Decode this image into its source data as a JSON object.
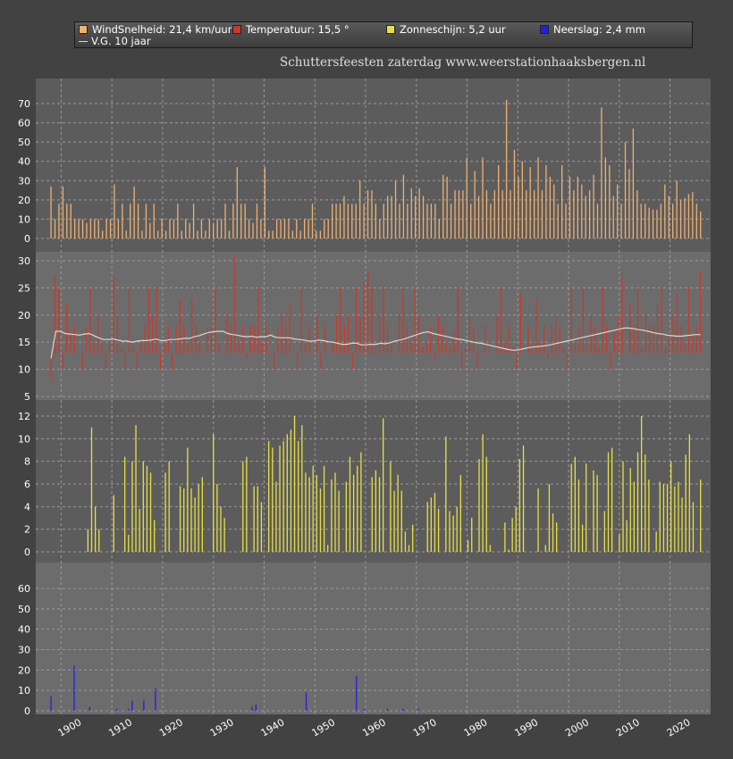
{
  "legend": {
    "wind": "WindSnelheid: 21,4 km/uur",
    "temp": "Temperatuur: 15,5 °",
    "sun": "Zonneschijn: 5,2 uur",
    "rain": "Neerslag: 2,4 mm",
    "avg": "V.G. 10 jaar"
  },
  "subtitle": "Schuttersfeesten zaterdag  www.weerstationhaaksbergen.nl",
  "colors": {
    "wind": "#f0b070",
    "temp": "#c83a2a",
    "sun": "#e8e040",
    "rain": "#2020e0",
    "avg": "#d8d8d8",
    "panel": "#5c5c5c",
    "panel_light": "#6c6c6c",
    "grid": "#9a9a9a",
    "text": "#ffffff"
  },
  "chart_data": {
    "type": "bar",
    "x_start": 1896,
    "x_end": 2024,
    "xlim": [
      1893,
      2026
    ],
    "x_ticks": [
      1900,
      1910,
      1920,
      1930,
      1940,
      1950,
      1960,
      1970,
      1980,
      1990,
      2000,
      2010,
      2020
    ],
    "panels": [
      {
        "name": "WindSnelheid",
        "ylim": [
          0,
          75
        ],
        "yticks": [
          0,
          10,
          20,
          30,
          40,
          50,
          60,
          70
        ],
        "baseline": 0,
        "values": [
          27,
          10,
          18,
          27,
          18,
          18,
          10,
          10,
          10,
          8,
          10,
          10,
          10,
          4,
          10,
          10,
          28,
          10,
          18,
          4,
          18,
          27,
          18,
          4,
          18,
          8,
          18,
          4,
          10,
          4,
          10,
          10,
          18,
          4,
          10,
          8,
          18,
          4,
          10,
          4,
          10,
          8,
          10,
          10,
          18,
          4,
          18,
          37,
          18,
          18,
          10,
          8,
          18,
          10,
          37,
          4,
          4,
          10,
          10,
          10,
          10,
          4,
          10,
          4,
          10,
          10,
          18,
          4,
          4,
          10,
          10,
          18,
          18,
          18,
          22,
          18,
          18,
          18,
          30,
          18,
          25,
          25,
          18,
          10,
          18,
          22,
          22,
          30,
          18,
          33,
          18,
          26,
          22,
          26,
          22,
          18,
          18,
          18,
          10,
          33,
          32,
          18,
          25,
          25,
          25,
          42,
          18,
          35,
          22,
          42,
          25,
          18,
          25,
          38,
          25,
          72,
          25,
          46,
          32,
          40,
          25,
          37,
          25,
          42,
          25,
          38,
          32,
          28,
          18,
          38,
          18,
          32,
          25,
          32,
          28,
          22,
          25,
          33,
          18,
          68,
          42,
          38,
          22,
          28,
          18,
          50,
          36,
          57,
          25,
          18,
          18,
          16,
          15,
          15,
          18,
          28,
          22,
          18,
          30,
          20,
          21,
          23,
          24,
          18,
          14
        ],
        "_note": "values per year from first year"
      },
      {
        "name": "Temperatuur",
        "ylim": [
          3,
          32
        ],
        "yticks": [
          5,
          10,
          15,
          20,
          25,
          30
        ],
        "baseline": 13,
        "values": [
          8,
          27,
          25,
          10,
          22,
          17,
          18,
          13,
          10,
          18,
          25,
          15,
          20,
          15,
          10,
          15,
          27,
          20,
          14,
          10,
          25,
          14,
          10,
          15,
          18,
          25,
          20,
          25,
          10,
          15,
          18,
          10,
          18,
          23,
          18,
          15,
          23,
          18,
          15,
          13,
          18,
          18,
          25,
          15,
          13,
          20,
          18,
          31,
          15,
          18,
          12,
          18,
          18,
          25,
          15,
          18,
          13,
          10,
          18,
          20,
          18,
          22,
          13,
          10,
          25,
          15,
          18,
          13,
          20,
          10,
          18,
          13,
          15,
          20,
          25,
          18,
          20,
          10,
          25,
          20,
          26,
          28,
          25,
          14,
          20,
          25,
          18,
          15,
          13,
          20,
          25,
          18,
          15,
          25,
          20,
          14,
          15,
          18,
          12,
          20,
          18,
          15,
          14,
          17,
          25,
          10,
          14,
          20,
          18,
          10,
          13,
          18,
          15,
          13,
          20,
          25,
          15,
          18,
          14,
          10,
          24,
          13,
          18,
          14,
          23,
          15,
          18,
          12,
          18,
          20,
          18,
          14,
          10,
          25,
          15,
          18,
          25,
          14,
          20,
          18,
          14,
          25,
          18,
          10,
          17,
          20,
          27,
          13,
          22,
          18,
          25,
          14,
          20,
          18,
          18,
          22,
          25,
          14,
          17,
          20,
          24,
          18,
          15,
          25,
          16,
          18,
          28
        ],
        "avg": [
          12,
          17,
          17,
          16.6,
          16.5,
          16.4,
          16.3,
          16.5,
          16.6,
          16.2,
          15.8,
          15.5,
          15.5,
          15.6,
          15.4,
          15.2,
          15.2,
          15,
          15.2,
          15.3,
          15.3,
          15.4,
          15.6,
          15.3,
          15.3,
          15.5,
          15.5,
          15.6,
          15.7,
          15.7,
          16,
          16.2,
          16.5,
          16.8,
          16.9,
          17,
          17,
          16.6,
          16.4,
          16.3,
          16.1,
          16,
          16.1,
          15.9,
          16,
          16,
          16.3,
          15.9,
          15.8,
          15.8,
          15.8,
          15.6,
          15.5,
          15.4,
          15.2,
          15.2,
          15.4,
          15.3,
          15.1,
          15,
          14.8,
          14.6,
          14.6,
          14.8,
          14.8,
          14.5,
          14.5,
          14.6,
          14.6,
          14.8,
          14.7,
          14.9,
          15.2,
          15.4,
          15.6,
          15.9,
          16.2,
          16.5,
          16.8,
          16.9,
          16.6,
          16.4,
          16.2,
          16,
          15.8,
          15.6,
          15.5,
          15.3,
          15.1,
          14.9,
          14.8,
          14.6,
          14.4,
          14.2,
          14,
          13.8,
          13.6,
          13.5,
          13.6,
          13.8,
          14,
          14.1,
          14.2,
          14.3,
          14.4,
          14.6,
          14.8,
          15,
          15.2,
          15.4,
          15.6,
          15.8,
          16,
          16.2,
          16.4,
          16.6,
          16.8,
          17,
          17.2,
          17.4,
          17.6,
          17.6,
          17.5,
          17.3,
          17.2,
          17,
          16.8,
          16.6,
          16.5,
          16.3,
          16.2,
          16.1,
          16.1,
          16.2,
          16.3,
          16.4,
          16.4
        ]
      },
      {
        "name": "Zonneschijn",
        "ylim": [
          0,
          12.5
        ],
        "yticks": [
          0,
          2,
          4,
          6,
          8,
          10,
          12
        ],
        "baseline": 0,
        "values": [
          0,
          0,
          0,
          0,
          0,
          0,
          0,
          0,
          0,
          0,
          2,
          11,
          4,
          2,
          0,
          0,
          0,
          5,
          0,
          0,
          8.4,
          1.5,
          8,
          11.2,
          3.8,
          8,
          7.6,
          7,
          2.8,
          0,
          0,
          7,
          8,
          0,
          0,
          5.8,
          5.6,
          9.2,
          5.6,
          4.8,
          6,
          6.6,
          0,
          0,
          10.4,
          6,
          4,
          3,
          0,
          0,
          0,
          0,
          8,
          8.4,
          0,
          5.8,
          5.8,
          4.4,
          0,
          9.8,
          9.2,
          6.2,
          9.4,
          9.8,
          10.4,
          10.8,
          12,
          9.8,
          11.2,
          7,
          6.6,
          7.6,
          6.8,
          5.6,
          7.6,
          0.6,
          6.4,
          7,
          5.4,
          0,
          6.2,
          8.4,
          6.8,
          7.6,
          8.8,
          0,
          0,
          6.6,
          7.2,
          6.6,
          11.8,
          0,
          8,
          5.4,
          6.8,
          5.4,
          1.8,
          0.6,
          2.4,
          0,
          0,
          0,
          4.4,
          4.8,
          5.2,
          3.8,
          0,
          10.2,
          3.6,
          3.2,
          4,
          6.8,
          0,
          1,
          3,
          0,
          8.2,
          10.4,
          8.4,
          0.6,
          0,
          0,
          0,
          2.6,
          0.2,
          3,
          4,
          8.2,
          9.4,
          0,
          0,
          0,
          5.6,
          0,
          0.6,
          6,
          3.4,
          2.6,
          0,
          0,
          0,
          7.8,
          8.4,
          6.4,
          2.4,
          7.8,
          0,
          7.2,
          6.8,
          0,
          3.6,
          8.8,
          9.2,
          0,
          1.6,
          8,
          2.8,
          7.4,
          6.2,
          8.8,
          12,
          8.6,
          6.4,
          0,
          1.8,
          6.2,
          6,
          6,
          8,
          5.8,
          6.2,
          4.8,
          8.6,
          10.4,
          4.4,
          0,
          6.4
        ]
      },
      {
        "name": "Neerslag",
        "ylim": [
          0,
          70
        ],
        "yticks": [
          0,
          10,
          20,
          30,
          40,
          50,
          60
        ],
        "baseline": 0,
        "values": [
          7,
          0,
          0,
          0,
          0,
          0,
          22,
          0,
          0,
          0,
          2,
          0,
          0,
          0,
          0,
          0,
          0,
          1,
          0,
          0,
          1,
          5,
          0,
          0,
          5,
          0,
          0,
          11,
          0,
          0,
          0,
          0,
          0,
          0,
          0,
          0,
          0,
          0,
          0,
          0,
          0,
          0,
          0,
          0,
          0,
          0,
          0,
          0,
          0,
          0,
          0,
          0,
          2,
          3,
          0,
          0,
          0,
          0,
          0,
          0,
          0,
          0,
          0,
          0,
          0,
          0,
          9,
          0,
          0,
          0,
          0,
          0,
          0,
          0,
          0,
          0,
          0,
          0,
          0,
          17,
          0,
          1,
          0,
          0,
          0,
          0,
          0,
          1,
          0,
          0,
          0,
          1,
          0,
          0,
          0,
          1,
          0,
          0,
          0,
          0,
          0,
          0,
          0,
          0,
          0,
          0,
          0,
          0,
          0,
          0,
          0,
          0,
          0,
          0,
          0,
          0,
          0,
          0,
          0,
          0,
          0,
          0,
          0,
          0,
          0,
          0,
          0,
          0,
          0,
          0,
          0,
          0,
          0,
          0,
          0,
          0,
          0,
          0,
          0,
          0,
          0,
          0,
          0,
          0,
          0,
          0,
          0,
          0,
          0,
          0,
          0,
          0,
          0,
          0,
          0,
          0,
          0,
          0,
          0,
          0,
          0,
          0,
          0,
          0,
          0,
          0,
          0,
          0,
          0
        ]
      }
    ]
  }
}
